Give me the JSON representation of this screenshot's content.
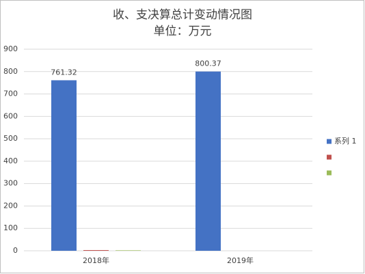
{
  "chart_data": {
    "type": "bar",
    "title": "收、支决算总计变动情况图",
    "subtitle": "单位：万元",
    "categories": [
      "2018年",
      "2019年"
    ],
    "series": [
      {
        "name": "系列 1",
        "color": "#4472c4",
        "values": [
          761.32,
          800.37
        ]
      },
      {
        "color": "#c0504d",
        "values": [
          3,
          0
        ]
      },
      {
        "color": "#9bbb59",
        "values": [
          2,
          0
        ]
      }
    ],
    "ylim": [
      0,
      900
    ],
    "yticks": [
      0,
      100,
      200,
      300,
      400,
      500,
      600,
      700,
      800,
      900
    ],
    "grid": true,
    "legend": "right",
    "data_labels": true
  }
}
